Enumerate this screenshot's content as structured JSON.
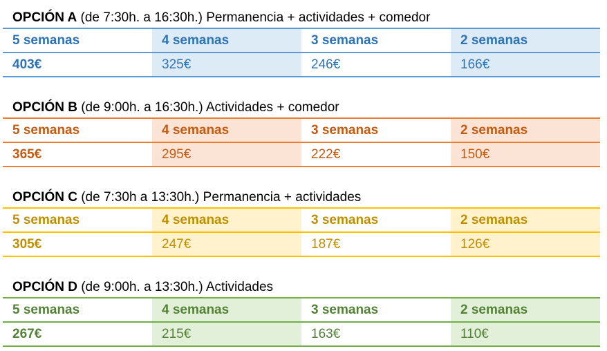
{
  "options": [
    {
      "label": "OPCIÓN A",
      "description": "(de 7:30h. a 16:30h.) Permanencia + actividades + comedor",
      "colors": {
        "text": "#2e74b5",
        "line": "#5b9bd5",
        "fill": "#ddebf7"
      },
      "headers": [
        "5 semanas",
        "4 semanas",
        "3 semanas",
        "2 semanas"
      ],
      "prices": [
        "403€",
        "325€",
        "246€",
        "166€"
      ]
    },
    {
      "label": "OPCIÓN B",
      "description": "(de 9:00h. a 16:30h.) Actividades + comedor",
      "colors": {
        "text": "#c55a11",
        "line": "#ed7d31",
        "fill": "#fbe4d5"
      },
      "headers": [
        "5 semanas",
        "4 semanas",
        "3 semanas",
        "2 semanas"
      ],
      "prices": [
        "365€",
        "295€",
        "222€",
        "150€"
      ]
    },
    {
      "label": "OPCIÓN C",
      "description": "(de 7:30h a 13:30h.) Permanencia + actividades",
      "colors": {
        "text": "#bf8f00",
        "line": "#ffc000",
        "fill": "#fff2cc"
      },
      "headers": [
        "5 semanas",
        "4 semanas",
        "3 semanas",
        "2 semanas"
      ],
      "prices": [
        "305€",
        "247€",
        "187€",
        "126€"
      ]
    },
    {
      "label": "OPCIÓN D",
      "description": "(de 9:00h. a 13:30h.) Actividades",
      "colors": {
        "text": "#538135",
        "line": "#70ad47",
        "fill": "#e2efd9"
      },
      "headers": [
        "5 semanas",
        "4 semanas",
        "3 semanas",
        "2 semanas"
      ],
      "prices": [
        "267€",
        "215€",
        "163€",
        "110€"
      ]
    }
  ]
}
